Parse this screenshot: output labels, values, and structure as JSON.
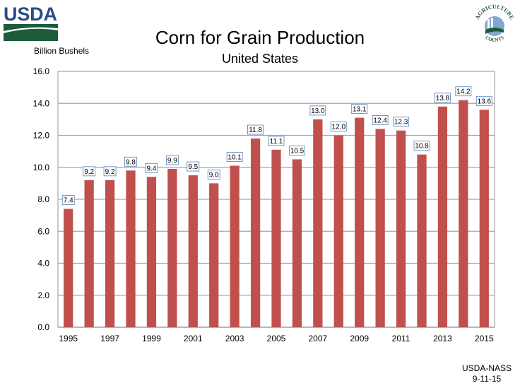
{
  "header": {
    "logo_left": "USDA",
    "logo_right_top": "AGRICULTURE",
    "logo_right_bottom": "COUNTS"
  },
  "footer": {
    "source": "USDA-NASS",
    "date": "9-11-15"
  },
  "colors": {
    "bar": "#c0504d",
    "gridline": "#a6a6a6",
    "label_border": "#4f81bd",
    "usda_blue": "#2b4c8c",
    "usda_green": "#1e5b3a"
  },
  "chart_data": {
    "type": "bar",
    "title": "Corn for Grain Production",
    "subtitle": "United States",
    "xlabel": "",
    "ylabel": "Billion Bushels",
    "ylim": [
      0,
      16
    ],
    "yticks": [
      0,
      2,
      4,
      6,
      8,
      10,
      12,
      14,
      16
    ],
    "ytick_labels": [
      "0.0",
      "2.0",
      "4.0",
      "6.0",
      "8.0",
      "10.0",
      "12.0",
      "14.0",
      "16.0"
    ],
    "grid": true,
    "legend": "none",
    "categories": [
      "1995",
      "1996",
      "1997",
      "1998",
      "1999",
      "2000",
      "2001",
      "2002",
      "2003",
      "2004",
      "2005",
      "2006",
      "2007",
      "2008",
      "2009",
      "2010",
      "2011",
      "2012",
      "2013",
      "2014",
      "2015"
    ],
    "xtick_labels": [
      "1995",
      "1997",
      "1999",
      "2001",
      "2003",
      "2005",
      "2007",
      "2009",
      "2011",
      "2013",
      "2015"
    ],
    "values": [
      7.4,
      9.2,
      9.2,
      9.8,
      9.4,
      9.9,
      9.5,
      9.0,
      10.1,
      11.8,
      11.1,
      10.5,
      13.0,
      12.0,
      13.1,
      12.4,
      12.3,
      10.8,
      13.8,
      14.2,
      13.6
    ],
    "data_labels": [
      "7.4",
      "9.2",
      "9.2",
      "9.8",
      "9.4",
      "9.9",
      "9.5",
      "9.0",
      "10.1",
      "11.8",
      "11.1",
      "10.5",
      "13.0",
      "12.0",
      "13.1",
      "12.4",
      "12.3",
      "10.8",
      "13.8",
      "14.2",
      "13.6"
    ]
  }
}
